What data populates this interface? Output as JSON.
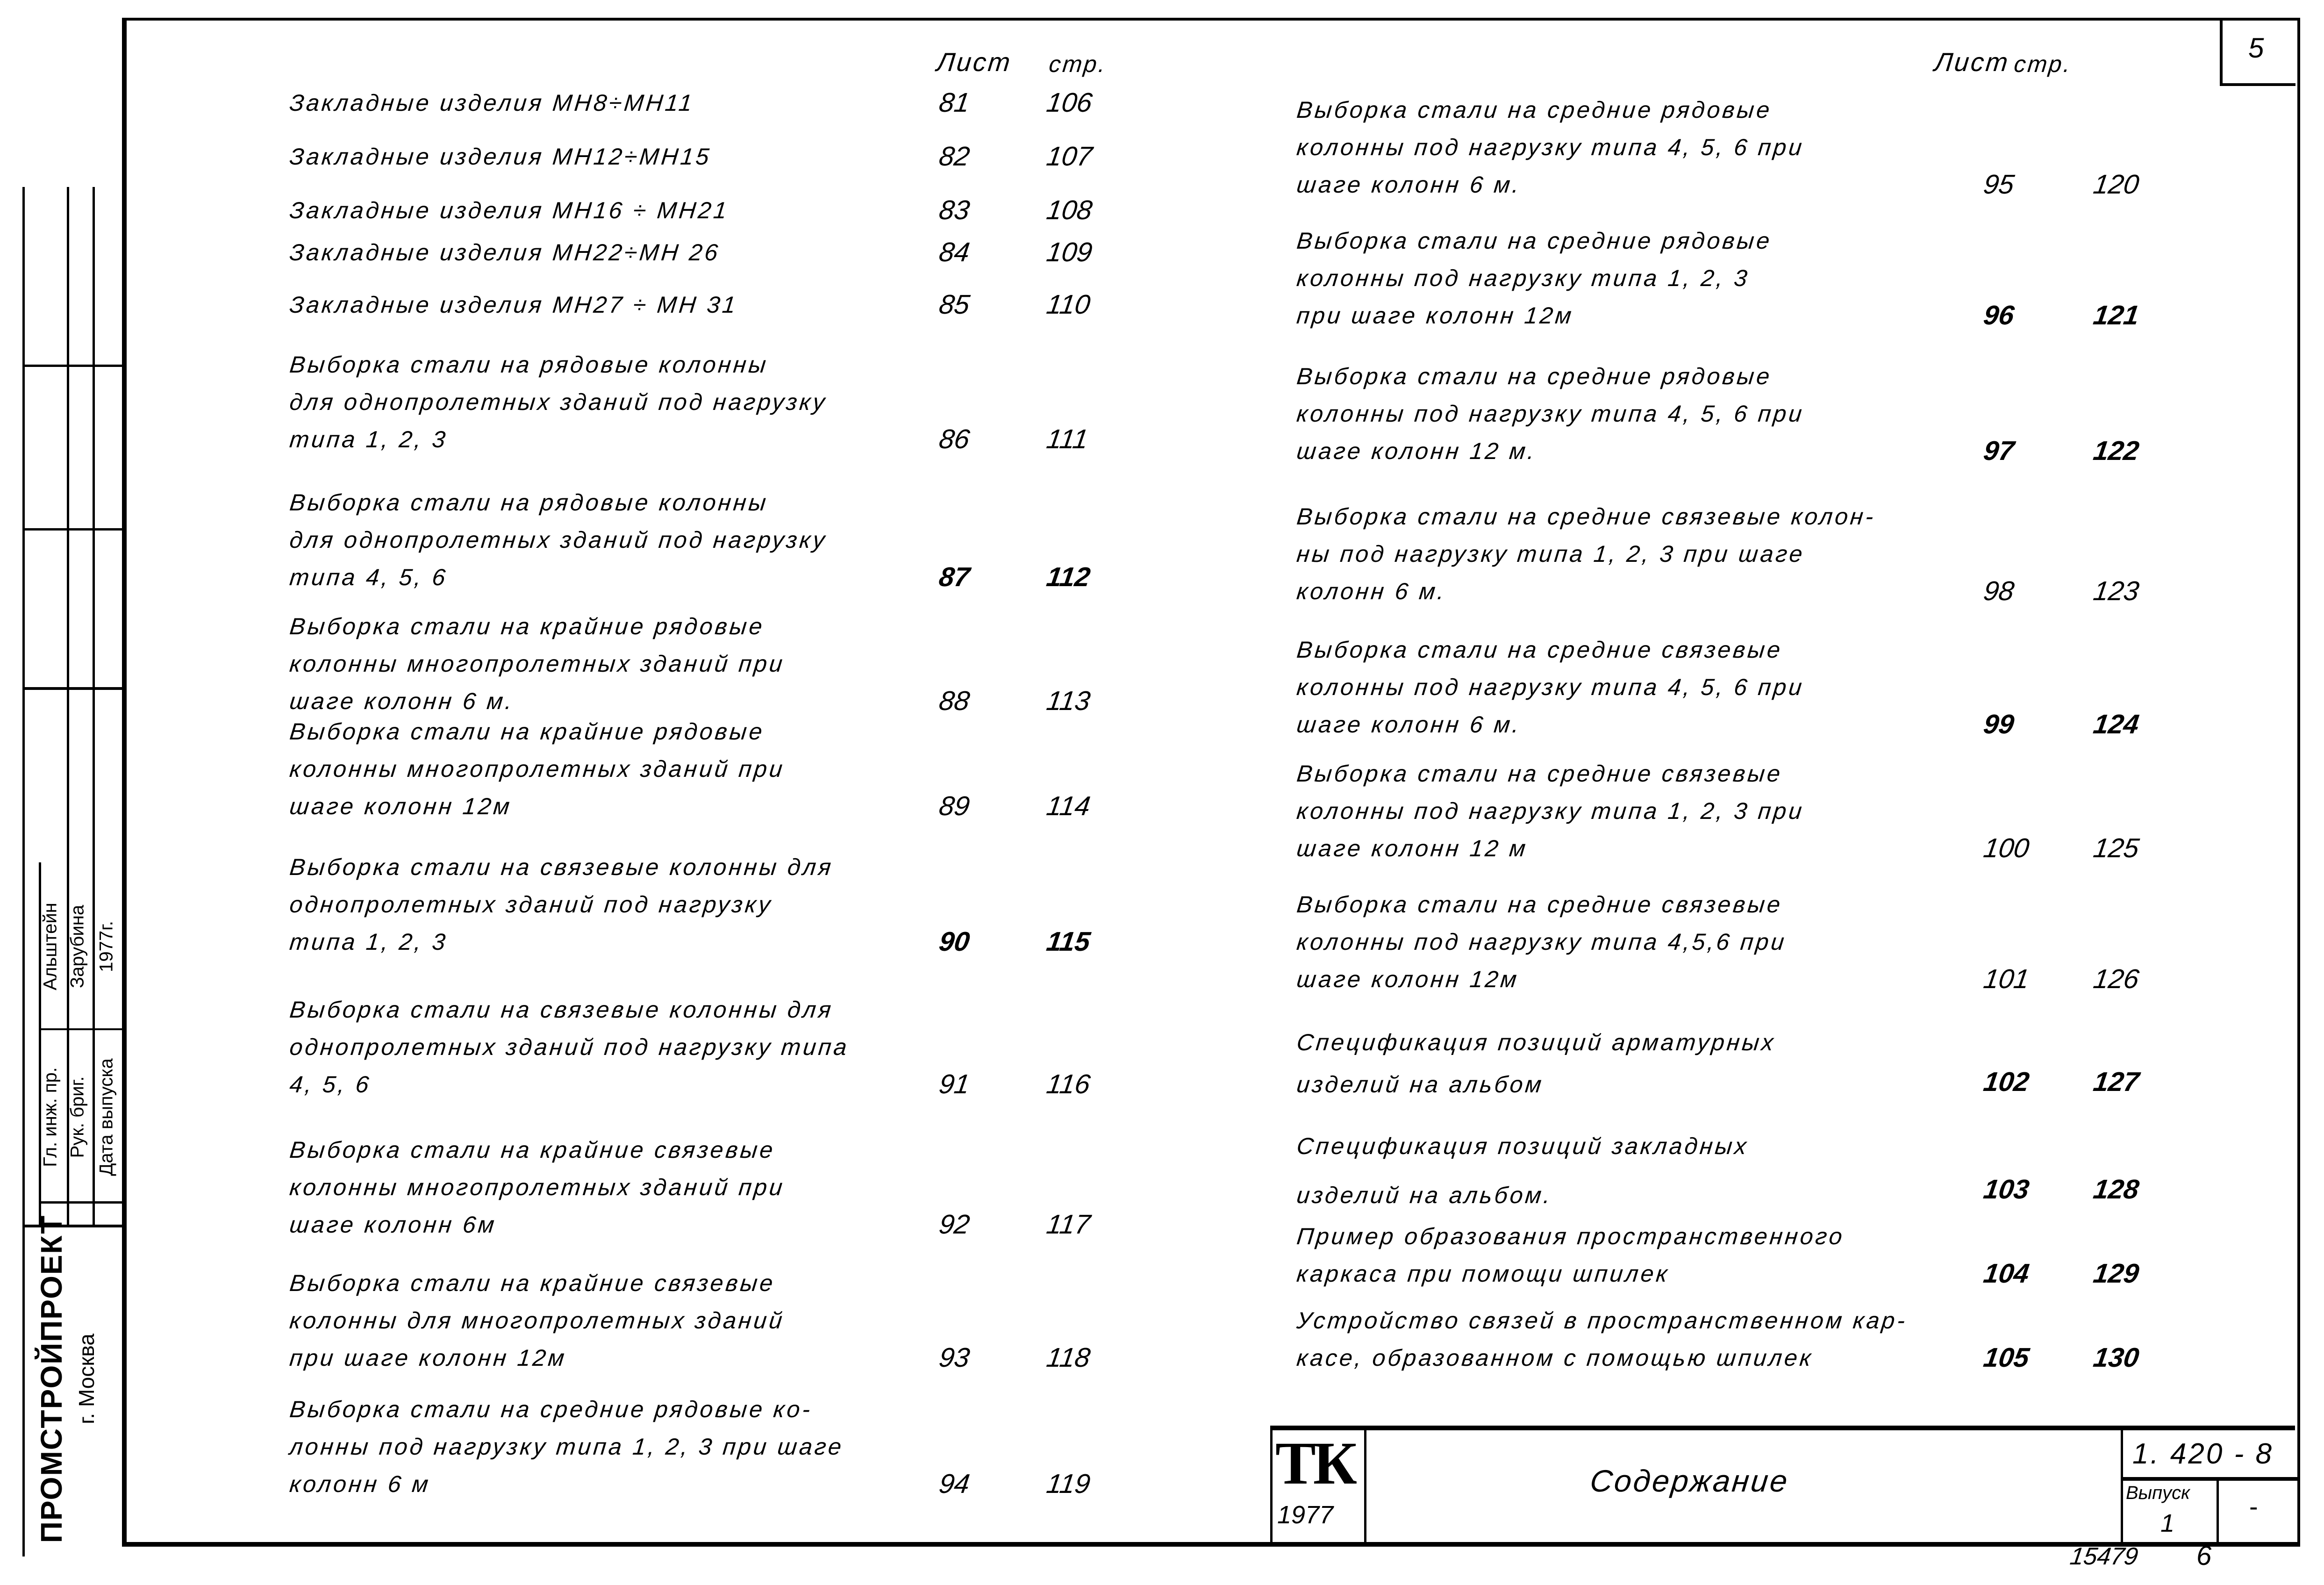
{
  "header_left": {
    "sheet": "Лист",
    "page": "стр."
  },
  "header_right": {
    "sheet": "Лист",
    "page": "стр."
  },
  "page_number_box": "5",
  "toc_left": [
    {
      "lines": [
        "Закладные   изделия   МН8÷МН11"
      ],
      "sheet": "81",
      "page": "106"
    },
    {
      "lines": [
        "Закладные   изделия   МН12÷МН15"
      ],
      "sheet": "82",
      "page": "107"
    },
    {
      "lines": [
        "Закладные   изделия   МН16 ÷ МН21"
      ],
      "sheet": "83",
      "page": "108"
    },
    {
      "lines": [
        "Закладные   изделия   МН22÷МН 26"
      ],
      "sheet": "84",
      "page": "109"
    },
    {
      "lines": [
        "Закладные   изделия   МН27 ÷ МН 31"
      ],
      "sheet": "85",
      "page": "110"
    },
    {
      "lines": [
        "Выборка стали на рядовые  колонны",
        "для однопролетных зданий под нагрузку",
        "типа  1, 2, 3"
      ],
      "sheet": "86",
      "page": "111"
    },
    {
      "lines": [
        "Выборка стали на рядовые  колонны",
        "для однопролетных зданий под нагрузку",
        "типа  4, 5, 6"
      ],
      "sheet": "87",
      "page": "112"
    },
    {
      "lines": [
        "Выборка стали на крайние  рядовые",
        "колонны многопролетных  зданий  при",
        "шаге  колонн   6 м."
      ],
      "sheet": "88",
      "page": "113"
    },
    {
      "lines": [
        "Выборка стали на  крайние  рядовые",
        "колонны многопролетных  зданий  при",
        "шаге   колонн  12м"
      ],
      "sheet": "89",
      "page": "114"
    },
    {
      "lines": [
        "Выборка стали на связевые колонны для",
        "однопролетных  зданий  под  нагрузку",
        "типа   1, 2, 3"
      ],
      "sheet": "90",
      "page": "115"
    },
    {
      "lines": [
        "Выборка стали на  связевые колонны для",
        "однопролетных зданий под нагрузку типа",
        "4, 5, 6"
      ],
      "sheet": "91",
      "page": "116"
    },
    {
      "lines": [
        "Выборка  стали на крайние  связевые",
        "колонны  многопролетных  зданий   при",
        "шаге  колонн  6м"
      ],
      "sheet": "92",
      "page": "117"
    },
    {
      "lines": [
        "Выборка  стали на крайние связевые",
        "колонны для  многопролетных  зданий",
        "при шаге   колонн   12м"
      ],
      "sheet": "93",
      "page": "118"
    },
    {
      "lines": [
        "Выборка  стали на средние  рядовые  ко-",
        "лонны под нагрузку типа 1, 2, 3  при  шаге",
        "колонн   6 м"
      ],
      "sheet": "94",
      "page": "119"
    }
  ],
  "toc_right": [
    {
      "lines": [
        "Выборка стали на средние рядовые",
        "колонны под нагрузку типа 4, 5, 6   при",
        "шаге  колонн   6 м."
      ],
      "sheet": "95",
      "page": "120"
    },
    {
      "lines": [
        "Выборка стали на средние  рядовые",
        "колонны  под  нагрузку  типа   1, 2, 3",
        "при  шаге    колонн  12м"
      ],
      "sheet": "96",
      "page": "121"
    },
    {
      "lines": [
        "Выборка  стали  на  средние  рядовые",
        "колонны  под   нагрузку  типа 4, 5, 6   при",
        "шаге   колонн   12 м."
      ],
      "sheet": "97",
      "page": "122"
    },
    {
      "lines": [
        "Выборка стали на  средние  связевые колон-",
        "ны под  нагрузку  типа 1, 2, 3  при  шаге",
        "колонн  6 м."
      ],
      "sheet": "98",
      "page": "123"
    },
    {
      "lines": [
        "Выборка стали на  средние  связевые",
        "колонны  под  нагрузку  типа  4, 5, 6   при",
        "шаге   колонн  6 м."
      ],
      "sheet": "99",
      "page": "124"
    },
    {
      "lines": [
        "Выборка   стали  на  средние  связевые",
        "колонны  под  нагрузку  типа  1, 2, 3   при",
        "шаге   колонн   12 м"
      ],
      "sheet": "100",
      "page": "125"
    },
    {
      "lines": [
        "Выборка   стали  на  средние   связевые",
        "колонны  под  нагрузку  типа  4,5,6    при",
        "шаге  колонн  12м"
      ],
      "sheet": "101",
      "page": "126"
    },
    {
      "lines": [
        "Спецификация   позиций   арматурных",
        "изделий    на   альбом"
      ],
      "sheet": "102",
      "page": "127"
    },
    {
      "lines": [
        "Спецификация     позиций     закладных",
        "изделий    на   альбом."
      ],
      "sheet": "103",
      "page": "128"
    },
    {
      "lines": [
        "Пример  образования  пространственного",
        "каркаса  при  помощи  шпилек"
      ],
      "sheet": "104",
      "page": "129"
    },
    {
      "lines": [
        "Устройство связей в пространственном кар-",
        "касе, образованном с помощью шпилек"
      ],
      "sheet": "105",
      "page": "130"
    }
  ],
  "title_block": {
    "logo": "ТК",
    "year": "1977",
    "title": "Содержание",
    "code": "1. 420 - 8",
    "issue_label": "Выпуск",
    "issue_value": "1",
    "sheet_mark": "-"
  },
  "footer": {
    "inventory": "15479",
    "sheet": "6"
  },
  "stamp": {
    "rows": [
      {
        "role": "Гл. инж. пр.",
        "name": "Альштейн"
      },
      {
        "role": "Рук. бриг.",
        "name": "Зарубина"
      },
      {
        "role": "Дата выпуска",
        "name": "1977г."
      }
    ],
    "organization": "ПРОМСТРОЙПРОЕКТ",
    "city": "г. Москва"
  }
}
